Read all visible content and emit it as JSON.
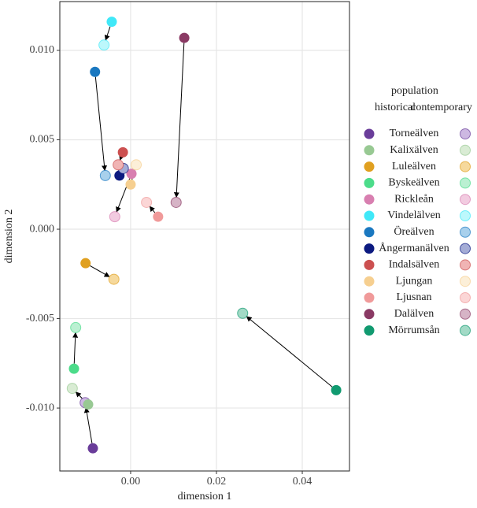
{
  "chart_data": {
    "type": "scatter",
    "xlabel": "dimension 1",
    "ylabel": "dimension 2",
    "xlim": [
      -0.0165,
      0.051
    ],
    "ylim": [
      -0.01352,
      0.01273
    ],
    "xticks": [
      {
        "value": 0,
        "label": "0.00"
      },
      {
        "value": 0.02,
        "label": "0.02"
      },
      {
        "value": 0.04,
        "label": "0.04"
      }
    ],
    "yticks": [
      {
        "value": 0.01,
        "label": "0.010"
      },
      {
        "value": 0.005,
        "label": "0.005"
      },
      {
        "value": 0,
        "label": "0.000"
      },
      {
        "value": -0.005,
        "label": "-0.005"
      },
      {
        "value": -0.01,
        "label": "-0.010"
      }
    ],
    "grid": true,
    "legend_title": "population",
    "legend_columns": [
      "historical",
      "contemporary"
    ],
    "series": [
      {
        "name": "Torneälven",
        "colors": [
          "#6a3d9a",
          "#cdb8e2"
        ],
        "x": [
          -0.0088,
          -0.0106
        ],
        "y": [
          -0.01225,
          -0.0097
        ]
      },
      {
        "name": "Kalixälven",
        "colors": [
          "#98c993",
          "#d9ecd4"
        ],
        "x": [
          -0.0099,
          -0.0136
        ],
        "y": [
          -0.0098,
          -0.0089
        ]
      },
      {
        "name": "Luleälven",
        "colors": [
          "#e0a020",
          "#f6d99c"
        ],
        "x": [
          -0.0105,
          -0.0039
        ],
        "y": [
          -0.0019,
          -0.0028
        ]
      },
      {
        "name": "Byskeälven",
        "colors": [
          "#4cdc8a",
          "#bbf0d2"
        ],
        "x": [
          -0.0132,
          -0.0128
        ],
        "y": [
          -0.0078,
          -0.0055
        ]
      },
      {
        "name": "Rickleån",
        "colors": [
          "#d87fb0",
          "#f2cbe0"
        ],
        "x": [
          0.0002,
          -0.0037
        ],
        "y": [
          0.0031,
          0.0007
        ]
      },
      {
        "name": "Vindelälven",
        "colors": [
          "#40e8f8",
          "#bcf8fc"
        ],
        "x": [
          -0.0044,
          -0.0062
        ],
        "y": [
          0.0116,
          0.0103
        ]
      },
      {
        "name": "Öreälven",
        "colors": [
          "#1a78c0",
          "#a8d0ec"
        ],
        "x": [
          -0.0083,
          -0.0059
        ],
        "y": [
          0.0088,
          0.003
        ]
      },
      {
        "name": "Ångermanälven",
        "colors": [
          "#0c1a80",
          "#a4acd6"
        ],
        "x": [
          -0.0026,
          -0.0017
        ],
        "y": [
          0.003,
          0.0034
        ]
      },
      {
        "name": "Indalsälven",
        "colors": [
          "#cc5050",
          "#f0b4b4"
        ],
        "x": [
          -0.0018,
          -0.0029
        ],
        "y": [
          0.0043,
          0.0036
        ]
      },
      {
        "name": "Ljungan",
        "colors": [
          "#f6cf90",
          "#fcefd8"
        ],
        "x": [
          0.0,
          0.0013
        ],
        "y": [
          0.0025,
          0.0036
        ]
      },
      {
        "name": "Ljusnan",
        "colors": [
          "#f09a9a",
          "#fbd6d6"
        ],
        "x": [
          0.0064,
          0.0037
        ],
        "y": [
          0.0007,
          0.0015
        ]
      },
      {
        "name": "Dalälven",
        "colors": [
          "#8a3a64",
          "#d6b4c6"
        ],
        "x": [
          0.0125,
          0.0106
        ],
        "y": [
          0.0107,
          0.0015
        ]
      },
      {
        "name": "Mörrumsån",
        "colors": [
          "#119a70",
          "#a2dac6"
        ],
        "x": [
          0.0479,
          0.0261
        ],
        "y": [
          -0.009,
          -0.0047
        ]
      }
    ]
  }
}
